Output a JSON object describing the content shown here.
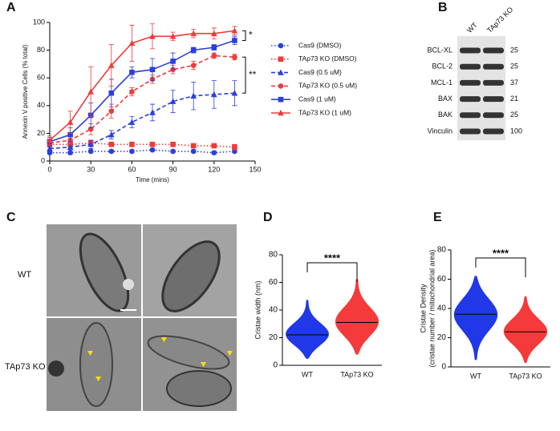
{
  "panel_labels": [
    "A",
    "B",
    "C",
    "D",
    "E"
  ],
  "chart_data": [
    {
      "type": "line",
      "x": [
        0,
        15,
        30,
        45,
        60,
        75,
        90,
        105,
        120,
        135
      ],
      "xlim": [
        0,
        150
      ],
      "xticks": [
        0,
        30,
        60,
        90,
        120,
        150
      ],
      "ylim": [
        0,
        100
      ],
      "yticks": [
        0,
        20,
        40,
        60,
        80,
        100
      ],
      "xlabel": "Time (mins)",
      "ylabel": "Annexin V positive Cells (% total)",
      "series": [
        {
          "name": "Cas9 (DMSO)",
          "color": "#2b3fe0",
          "line_style": "dotted",
          "marker": "circle",
          "values": [
            6,
            6,
            7,
            7,
            7,
            8,
            7,
            7,
            6,
            7
          ],
          "errors": [
            1,
            1,
            1,
            1,
            1,
            1,
            1,
            1,
            1,
            1
          ]
        },
        {
          "name": "TAp73 KO (DMSO)",
          "color": "#f03a3a",
          "line_style": "dotted",
          "marker": "square",
          "values": [
            12,
            12,
            13,
            12,
            12,
            12,
            12,
            11,
            11,
            10
          ],
          "errors": [
            2,
            2,
            2,
            1,
            1,
            1,
            1,
            1,
            1,
            2
          ]
        },
        {
          "name": "Cas9 (0.5 uM)",
          "color": "#2b3fe0",
          "line_style": "dashed",
          "marker": "triangle",
          "values": [
            9,
            10,
            12,
            19,
            28,
            35,
            43,
            47,
            48,
            49
          ],
          "errors": [
            2,
            2,
            3,
            3,
            4,
            6,
            8,
            10,
            10,
            9
          ]
        },
        {
          "name": "TAp73 KO (0.5 uM)",
          "color": "#f03a3a",
          "line_style": "dashed",
          "marker": "circle",
          "values": [
            13,
            15,
            23,
            36,
            50,
            59,
            66,
            69,
            76,
            75
          ],
          "errors": [
            2,
            3,
            4,
            5,
            3,
            3,
            3,
            3,
            2,
            2
          ]
        },
        {
          "name": "Cas9 (1 uM)",
          "color": "#2b3fe0",
          "line_style": "solid",
          "marker": "square",
          "values": [
            14,
            19,
            33,
            49,
            64,
            66,
            72,
            80,
            82,
            87
          ],
          "errors": [
            3,
            5,
            9,
            10,
            4,
            8,
            6,
            2,
            2,
            3
          ]
        },
        {
          "name": "TAp73 KO (1 uM)",
          "color": "#f03a3a",
          "line_style": "solid",
          "marker": "triangle",
          "values": [
            15,
            28,
            50,
            69,
            85,
            90,
            90,
            92,
            92,
            94
          ],
          "errors": [
            3,
            8,
            18,
            15,
            13,
            9,
            3,
            3,
            4,
            3
          ]
        }
      ],
      "annotations": [
        "*",
        "**"
      ]
    },
    {
      "type": "violin",
      "categories": [
        "WT",
        "TAp73 KO"
      ],
      "colors": [
        "#2038e8",
        "#f43a3a"
      ],
      "ylim": [
        0,
        80
      ],
      "yticks": [
        0,
        20,
        40,
        60,
        80
      ],
      "ylabel": "Cristae width (nm)",
      "medians": [
        22,
        31
      ],
      "mins": [
        5,
        8
      ],
      "maxs": [
        47,
        62
      ],
      "significance": "****"
    },
    {
      "type": "violin",
      "categories": [
        "WT",
        "TAp73 KO"
      ],
      "colors": [
        "#2038e8",
        "#f43a3a"
      ],
      "ylim": [
        0,
        80
      ],
      "yticks": [
        0,
        20,
        40,
        60,
        80
      ],
      "ylabel": [
        "Cristae Density",
        "(cristae number / mitochondrial area)"
      ],
      "medians": [
        36,
        24
      ],
      "mins": [
        5,
        3
      ],
      "maxs": [
        62,
        48
      ],
      "significance": "****"
    }
  ],
  "blot": {
    "lanes": [
      "WT",
      "TAp73 KO"
    ],
    "proteins": [
      "BCL-XL",
      "BCL-2",
      "MCL-1",
      "BAX",
      "BAK",
      "Vinculin"
    ],
    "markers": [
      25,
      25,
      37,
      21,
      25,
      100
    ]
  },
  "micrographs": {
    "rows": [
      "WT",
      "TAp73 KO"
    ]
  }
}
